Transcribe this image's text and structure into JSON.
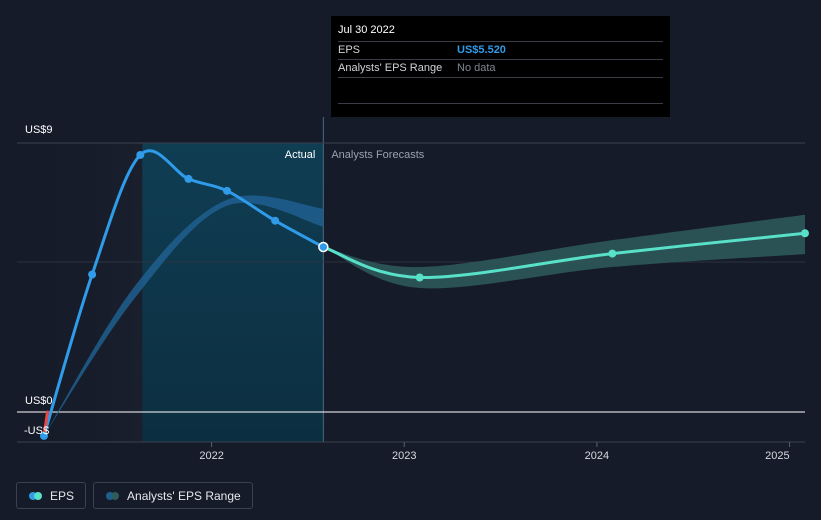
{
  "chart_data": {
    "type": "line",
    "y_tick_labels": [
      "US$9",
      "US$0",
      "-US$"
    ],
    "x_tick_labels": [
      {
        "label": "2022",
        "year": 2022.0
      },
      {
        "label": "2023",
        "year": 2023.0
      },
      {
        "label": "2024",
        "year": 2024.0
      },
      {
        "label": "2025",
        "year": 2025.0
      }
    ],
    "ylim": [
      -1.0,
      9.0
    ],
    "xlim": [
      2020.99,
      2025.08
    ],
    "actual_label": "Actual",
    "forecast_label": "Analysts Forecasts",
    "actual_start_year": 2021.64,
    "actual_end_year": 2022.58,
    "series": [
      {
        "name": "EPS",
        "color": "#2f9be9",
        "points": [
          {
            "x": 2021.13,
            "y": -0.8
          },
          {
            "x": 2021.38,
            "y": 4.6
          },
          {
            "x": 2021.63,
            "y": 8.6
          },
          {
            "x": 2021.88,
            "y": 7.8
          },
          {
            "x": 2022.08,
            "y": 7.4
          },
          {
            "x": 2022.33,
            "y": 6.4
          },
          {
            "x": 2022.58,
            "y": 5.52
          }
        ]
      },
      {
        "name": "EPS forecast",
        "color": "#58e0c8",
        "points": [
          {
            "x": 2022.58,
            "y": 5.52
          },
          {
            "x": 2023.08,
            "y": 4.5
          },
          {
            "x": 2024.08,
            "y": 5.3
          },
          {
            "x": 2025.08,
            "y": 5.98
          }
        ]
      }
    ],
    "analyst_range": [
      {
        "x": 2021.13,
        "low": -0.8,
        "high": -0.8
      },
      {
        "x": 2021.6,
        "low": 3.8,
        "high": 4.2
      },
      {
        "x": 2022.08,
        "low": 6.9,
        "high": 7.1
      },
      {
        "x": 2022.58,
        "low": 6.2,
        "high": 6.8
      }
    ],
    "forecast_range": [
      {
        "x": 2022.58,
        "low": 5.52,
        "high": 5.52
      },
      {
        "x": 2023.08,
        "low": 4.15,
        "high": 4.85
      },
      {
        "x": 2024.08,
        "low": 4.85,
        "high": 5.75
      },
      {
        "x": 2025.08,
        "low": 5.28,
        "high": 6.6
      }
    ],
    "legend": [
      "EPS",
      "Analysts' EPS Range"
    ]
  },
  "tooltip": {
    "date": "Jul 30 2022",
    "eps_label": "EPS",
    "eps_value": "US$5.520",
    "range_label": "Analysts' EPS Range",
    "range_value": "No data"
  },
  "legend": {
    "eps_label": "EPS",
    "range_label": "Analysts' EPS Range"
  },
  "colors": {
    "background": "#151b28",
    "eps_line": "#2f9be9",
    "forecast_line": "#58e0c8",
    "forecast_band": "#2e5b5c",
    "analyst_band": "#1f5f8f",
    "negative_segment": "#e8483f",
    "actual_region": "#0d3a50",
    "zero_line": "#ffffff"
  }
}
